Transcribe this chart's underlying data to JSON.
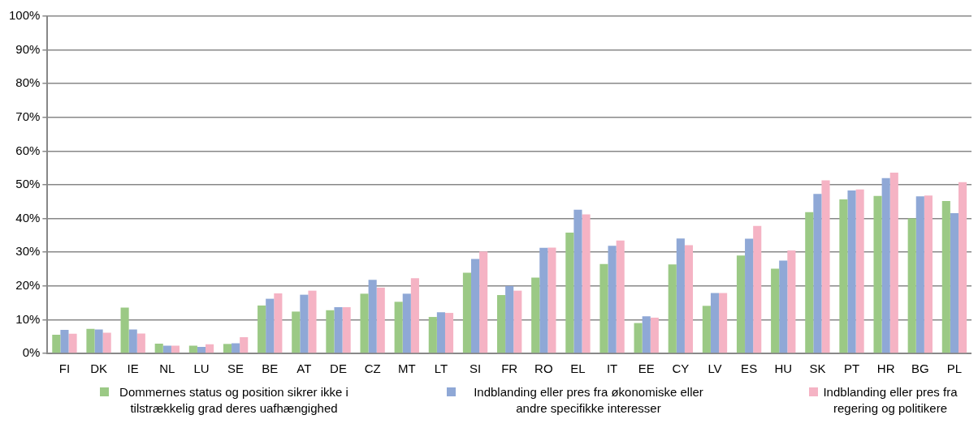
{
  "chart_data": {
    "type": "bar",
    "categories": [
      "FI",
      "DK",
      "IE",
      "NL",
      "LU",
      "SE",
      "BE",
      "AT",
      "DE",
      "CZ",
      "MT",
      "LT",
      "SI",
      "FR",
      "RO",
      "EL",
      "IT",
      "EE",
      "CY",
      "LV",
      "ES",
      "HU",
      "SK",
      "PT",
      "HR",
      "BG",
      "PL"
    ],
    "series": [
      {
        "name": "Dommernes status og position sikrer ikke i tilstrækkelig grad deres uafhængighed",
        "color": "#9bc985",
        "values": [
          5.5,
          7.3,
          13.6,
          2.9,
          2.3,
          2.8,
          14.2,
          12.4,
          12.8,
          17.7,
          15.3,
          10.8,
          23.9,
          17.3,
          22.5,
          35.8,
          26.5,
          9.0,
          26.4,
          14.1,
          29.0,
          25.1,
          41.9,
          45.7,
          46.7,
          40.0,
          45.2
        ]
      },
      {
        "name": "Indblanding eller pres fra økonomiske eller andre specifikke interesser",
        "color": "#8fa8d6",
        "values": [
          7.0,
          7.1,
          7.1,
          2.3,
          1.9,
          3.0,
          16.2,
          17.4,
          13.7,
          21.8,
          17.7,
          12.2,
          28.0,
          20.0,
          31.3,
          42.6,
          31.9,
          11.0,
          34.1,
          17.9,
          34.0,
          27.5,
          47.3,
          48.3,
          52.0,
          46.6,
          41.6
        ]
      },
      {
        "name": "Indblanding eller pres fra regering og politikere",
        "color": "#f5b3c4",
        "values": [
          5.8,
          6.1,
          5.9,
          2.3,
          2.7,
          4.8,
          17.8,
          18.6,
          13.7,
          19.5,
          22.3,
          12.0,
          30.2,
          18.6,
          31.4,
          41.2,
          33.5,
          10.6,
          32.1,
          17.9,
          37.8,
          30.5,
          51.3,
          48.6,
          53.6,
          46.8,
          50.8
        ]
      }
    ],
    "ylim": [
      0,
      100
    ],
    "yticks": [
      {
        "value": 0,
        "label": "0%"
      },
      {
        "value": 10,
        "label": "10%"
      },
      {
        "value": 20,
        "label": "20%"
      },
      {
        "value": 30,
        "label": "30%"
      },
      {
        "value": 40,
        "label": "40%"
      },
      {
        "value": 50,
        "label": "50%"
      },
      {
        "value": 60,
        "label": "60%"
      },
      {
        "value": 70,
        "label": "70%"
      },
      {
        "value": 80,
        "label": "80%"
      },
      {
        "value": 90,
        "label": "90%"
      },
      {
        "value": 100,
        "label": "100%"
      }
    ],
    "grid": "y",
    "legend": "bottom"
  }
}
